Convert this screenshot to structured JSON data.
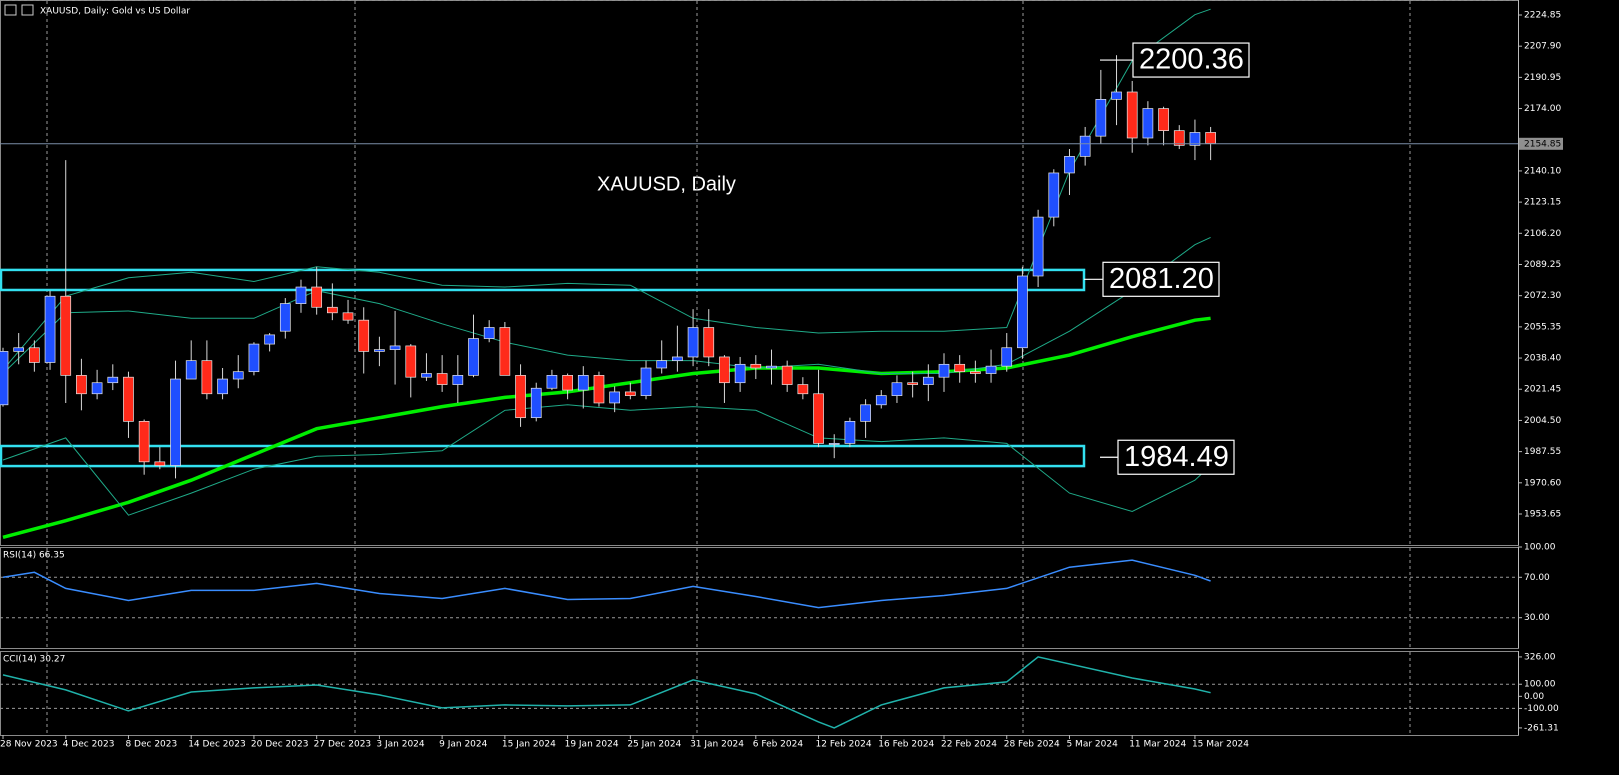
{
  "chart_data": [
    {
      "type": "candlestick",
      "title": "XAUUSD, Daily:  Gold vs US Dollar",
      "annotation": "XAUUSD, Daily",
      "up_color": "#1f4fff",
      "down_color": "#ff2a1a",
      "xlim": [
        -0.19,
        96.6
      ],
      "xticks": [
        {
          "value": 0,
          "label": "28 Nov 2023"
        },
        {
          "value": 4,
          "label": "4 Dec 2023"
        },
        {
          "value": 8,
          "label": "8 Dec 2023"
        },
        {
          "value": 12,
          "label": "14 Dec 2023"
        },
        {
          "value": 16,
          "label": "20 Dec 2023"
        },
        {
          "value": 20,
          "label": "27 Dec 2023"
        },
        {
          "value": 24,
          "label": "3 Jan 2024"
        },
        {
          "value": 28,
          "label": "9 Jan 2024"
        },
        {
          "value": 32,
          "label": "15 Jan 2024"
        },
        {
          "value": 36,
          "label": "19 Jan 2024"
        },
        {
          "value": 40,
          "label": "25 Jan 2024"
        },
        {
          "value": 44,
          "label": "31 Jan 2024"
        },
        {
          "value": 48,
          "label": "6 Feb 2024"
        },
        {
          "value": 52,
          "label": "12 Feb 2024"
        },
        {
          "value": 56,
          "label": "16 Feb 2024"
        },
        {
          "value": 60,
          "label": "22 Feb 2024"
        },
        {
          "value": 64,
          "label": "28 Feb 2024"
        },
        {
          "value": 68,
          "label": "5 Mar 2024"
        },
        {
          "value": 72,
          "label": "11 Mar 2024"
        },
        {
          "value": 76,
          "label": "15 Mar 2024"
        }
      ],
      "ylim": [
        1936.8,
        2233.0
      ],
      "yticks": [
        2224.85,
        {
          "value": 2207.9,
          "label": "2207.90"
        },
        2190.95,
        {
          "value": 2174,
          "label": "2174.00"
        },
        {
          "value": 2140.1,
          "label": "2140.10"
        },
        2123.15,
        {
          "value": 2106.2,
          "label": "2106.20"
        },
        2089.25,
        {
          "value": 2072.3,
          "label": "2072.30"
        },
        2055.35,
        {
          "value": 2038.4,
          "label": "2038.40"
        },
        2021.45,
        {
          "value": 2004.5,
          "label": "2004.50"
        },
        1987.55,
        {
          "value": 1970.6,
          "label": "1970.60"
        },
        1953.65
      ],
      "current_price": {
        "value": 2154.85,
        "label": "2154.85"
      },
      "zones": [
        [
          2086.3,
          2075.4
        ],
        [
          1990.6,
          1979.7
        ]
      ],
      "levels": [
        {
          "value": 2200.36,
          "label": "2200.36"
        },
        {
          "value": 2081.2,
          "label": "2081.20"
        },
        {
          "value": 1984.49,
          "label": "1984.49"
        }
      ],
      "x": [
        0,
        1,
        2,
        3,
        4,
        5,
        6,
        7,
        8,
        9,
        10,
        11,
        12,
        13,
        14,
        15,
        16,
        17,
        18,
        19,
        20,
        21,
        22,
        23,
        24,
        25,
        26,
        27,
        28,
        29,
        30,
        31,
        32,
        33,
        34,
        35,
        36,
        37,
        38,
        39,
        40,
        41,
        42,
        43,
        44,
        45,
        46,
        47,
        48,
        49,
        50,
        51,
        52,
        53,
        54,
        55,
        56,
        57,
        58,
        59,
        60,
        61,
        62,
        63,
        64,
        65,
        66,
        67,
        68,
        69,
        70,
        71,
        72,
        73,
        74,
        75,
        76,
        77
      ],
      "open": [
        2013,
        2042,
        2044,
        2036,
        2072,
        2029,
        2019,
        2025,
        2028,
        2004,
        1982,
        1980,
        2027,
        2037,
        2019,
        2027,
        2031,
        2046,
        2053,
        2068,
        2077,
        2066,
        2063,
        2059,
        2042,
        2043,
        2045,
        2028,
        2030,
        2024,
        2029,
        2049,
        2055,
        2029,
        2006,
        2022,
        2029,
        2021,
        2029,
        2014,
        2020,
        2018,
        2033,
        2037,
        2039,
        2055,
        2039,
        2025,
        2035,
        2033,
        2034,
        2024,
        2019,
        1992,
        1992,
        2004,
        2013,
        2018,
        2025,
        2024,
        2028,
        2035,
        2031,
        2030,
        2034,
        2044,
        2083,
        2115,
        2139,
        2148,
        2159,
        2179,
        2183,
        2158,
        2174,
        2162,
        2154,
        2161
      ],
      "high": [
        2044,
        2052,
        2048,
        2075,
        2146,
        2038,
        2032,
        2035,
        2031,
        2005,
        1990,
        2037,
        2048,
        2048,
        2033,
        2040,
        2047,
        2052,
        2071,
        2081,
        2088,
        2079,
        2070,
        2066,
        2050,
        2064,
        2046,
        2041,
        2040,
        2040,
        2062,
        2059,
        2058,
        2035,
        2025,
        2032,
        2030,
        2034,
        2031,
        2023,
        2025,
        2037,
        2048,
        2056,
        2065,
        2065,
        2040,
        2039,
        2040,
        2043,
        2037,
        2028,
        2032,
        1997,
        2006,
        2016,
        2021,
        2029,
        2031,
        2035,
        2041,
        2040,
        2037,
        2043,
        2052,
        2088,
        2119,
        2141,
        2152,
        2164,
        2195,
        2203,
        2189,
        2178,
        2175,
        2165,
        2168,
        2164
      ],
      "low": [
        2012,
        2035,
        2031,
        2032,
        2014,
        2010,
        2016,
        2021,
        1995,
        1975,
        1978,
        1973,
        2027,
        2016,
        2016,
        2022,
        2029,
        2042,
        2049,
        2063,
        2062,
        2059,
        2057,
        2030,
        2034,
        2024,
        2017,
        2026,
        2020,
        2014,
        2028,
        2047,
        2030,
        2001,
        2004,
        2021,
        2016,
        2011,
        2012,
        2009,
        2016,
        2016,
        2030,
        2031,
        2034,
        2034,
        2014,
        2020,
        2027,
        2024,
        2020,
        2016,
        1990,
        1984,
        1990,
        1995,
        2011,
        2014,
        2017,
        2015,
        2020,
        2025,
        2025,
        2025,
        2031,
        2038,
        2077,
        2110,
        2127,
        2143,
        2155,
        2165,
        2150,
        2154,
        2154,
        2152,
        2146,
        2146
      ],
      "close": [
        2042,
        2044,
        2036,
        2072,
        2029,
        2019,
        2025,
        2028,
        2004,
        1982,
        1980,
        2027,
        2037,
        2019,
        2027,
        2031,
        2046,
        2051,
        2068,
        2077,
        2066,
        2063,
        2059,
        2042,
        2043,
        2045,
        2028,
        2030,
        2024,
        2029,
        2049,
        2055,
        2029,
        2006,
        2022,
        2029,
        2021,
        2029,
        2014,
        2020,
        2018,
        2033,
        2037,
        2039,
        2055,
        2039,
        2025,
        2035,
        2033,
        2034,
        2024,
        2019,
        1992,
        1992,
        2004,
        2013,
        2018,
        2025,
        2024,
        2028,
        2035,
        2031,
        2030,
        2034,
        2044,
        2083,
        2115,
        2139,
        2148,
        2159,
        2179,
        2183,
        2158,
        2174,
        2162,
        2154,
        2161,
        2155
      ],
      "overlays": [
        {
          "color": "#00ee00",
          "x": [
            0,
            4,
            8,
            12,
            16,
            20,
            24,
            28,
            32,
            36,
            40,
            44,
            48,
            52,
            56,
            60,
            64,
            68,
            72,
            76,
            77
          ],
          "values": [
            1941,
            1950,
            1960,
            1972,
            1986,
            2000,
            2006,
            2012,
            2017,
            2020,
            2025,
            2030,
            2033,
            2033,
            2030,
            2031,
            2033,
            2040,
            2050,
            2059,
            2060
          ]
        },
        {
          "color": "#1faa88",
          "x": [
            0,
            4,
            8,
            12,
            16,
            20,
            24,
            28,
            32,
            36,
            40,
            44,
            48,
            52,
            56,
            60,
            64,
            68,
            72,
            76,
            77
          ],
          "values": [
            2032,
            2072,
            2082,
            2085,
            2080,
            2088,
            2085,
            2078,
            2077,
            2079,
            2078,
            2060,
            2055,
            2052,
            2053,
            2053,
            2055,
            2140,
            2200,
            2225,
            2228
          ]
        },
        {
          "color": "#1faa88",
          "x": [
            0,
            4,
            8,
            12,
            16,
            20,
            24,
            28,
            32,
            36,
            40,
            44,
            48,
            52,
            56,
            60,
            64,
            68,
            72,
            76,
            77
          ],
          "values": [
            2030,
            2063,
            2064,
            2060,
            2060,
            2075,
            2068,
            2057,
            2047,
            2040,
            2037,
            2037,
            2033,
            2035,
            2030,
            2030,
            2035,
            2053,
            2075,
            2100,
            2104
          ]
        },
        {
          "color": "#1faa88",
          "x": [
            0,
            4,
            8,
            12,
            16,
            20,
            24,
            28,
            32,
            36,
            40,
            44,
            48,
            52,
            56,
            60,
            64,
            68,
            72,
            76,
            77
          ],
          "values": [
            1983,
            1995,
            1953,
            1965,
            1978,
            1985,
            1986,
            1988,
            2010,
            2013,
            2010,
            2012,
            2010,
            1995,
            1993,
            1995,
            1992,
            1965,
            1955,
            1972,
            1980
          ]
        }
      ]
    },
    {
      "type": "line",
      "title": "RSI(14) 66.35",
      "color": "#3a8dff",
      "ylim": [
        0,
        100
      ],
      "yticks": [
        {
          "value": 100,
          "label": "100.00"
        },
        {
          "value": 70,
          "label": "70.00"
        },
        {
          "value": 30,
          "label": "30.00"
        }
      ],
      "levels": [
        70,
        30
      ],
      "x": [
        0,
        2,
        4,
        8,
        12,
        16,
        20,
        24,
        28,
        32,
        36,
        40,
        44,
        48,
        52,
        56,
        60,
        64,
        68,
        72,
        76,
        77
      ],
      "values": [
        70,
        75,
        59,
        47,
        57,
        57,
        64,
        54,
        49,
        59,
        48,
        49,
        61,
        51,
        40,
        47,
        52,
        59,
        80,
        87,
        72,
        66.35
      ]
    },
    {
      "type": "line",
      "title": "CCI(14) 30.27",
      "color": "#20b2aa",
      "ylim": [
        -320,
        375
      ],
      "yticks": [
        {
          "value": 326,
          "label": "326.00"
        },
        {
          "value": 100,
          "label": "100.00"
        },
        {
          "value": 0,
          "label": "0.00"
        },
        {
          "value": -100,
          "label": "-100.00"
        },
        -261.31
      ],
      "levels": [
        100,
        -100
      ],
      "x": [
        0,
        4,
        8,
        12,
        16,
        20,
        24,
        28,
        32,
        36,
        40,
        44,
        48,
        52,
        53,
        56,
        60,
        64,
        66,
        72,
        76,
        77
      ],
      "values": [
        177,
        53,
        -121,
        36,
        70,
        94,
        12,
        -96,
        -71,
        -79,
        -71,
        136,
        20,
        -212,
        -261.31,
        -71,
        70,
        119,
        326,
        152,
        61,
        30.27
      ]
    }
  ]
}
